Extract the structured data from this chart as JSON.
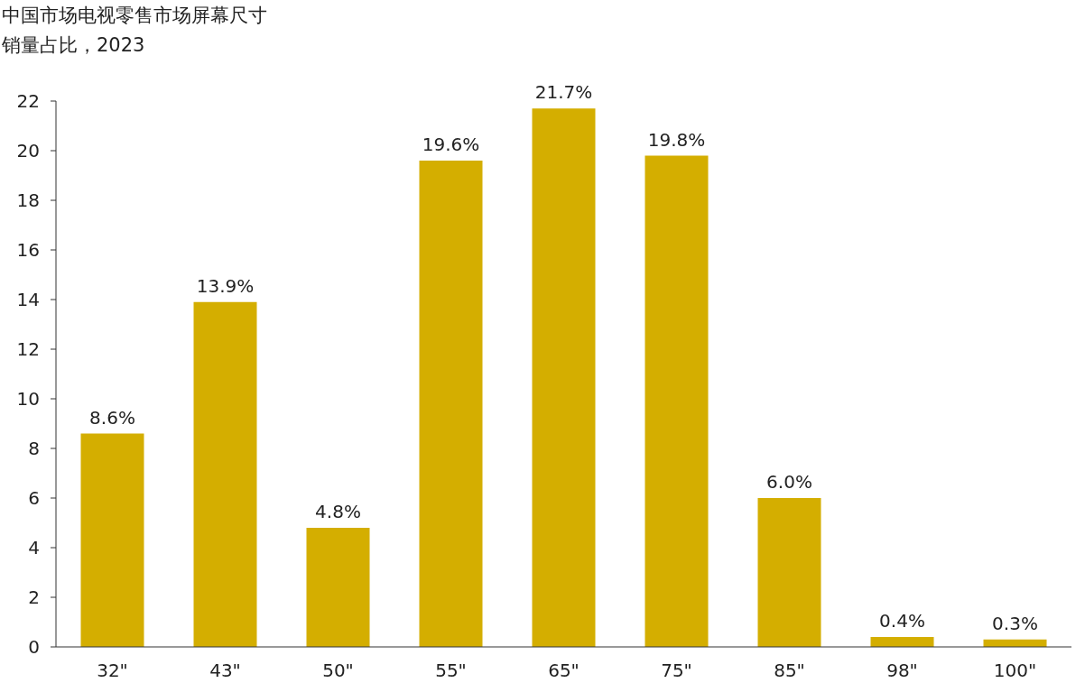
{
  "chart_data": {
    "type": "bar",
    "title": "中国市场电视零售市场屏幕尺寸",
    "subtitle": "销量占比，2023",
    "categories": [
      "32\"",
      "43\"",
      "50\"",
      "55\"",
      "65\"",
      "75\"",
      "85\"",
      "98\"",
      "100\""
    ],
    "values": [
      8.6,
      13.9,
      4.8,
      19.6,
      21.7,
      19.8,
      6.0,
      0.4,
      0.3
    ],
    "value_labels": [
      "8.6%",
      "13.9%",
      "4.8%",
      "19.6%",
      "21.7%",
      "19.8%",
      "6.0%",
      "0.4%",
      "0.3%"
    ],
    "color": "#d4ae00",
    "ylim": [
      0,
      22
    ],
    "yticks": [
      0,
      2,
      4,
      6,
      8,
      10,
      12,
      14,
      16,
      18,
      20,
      22
    ]
  }
}
